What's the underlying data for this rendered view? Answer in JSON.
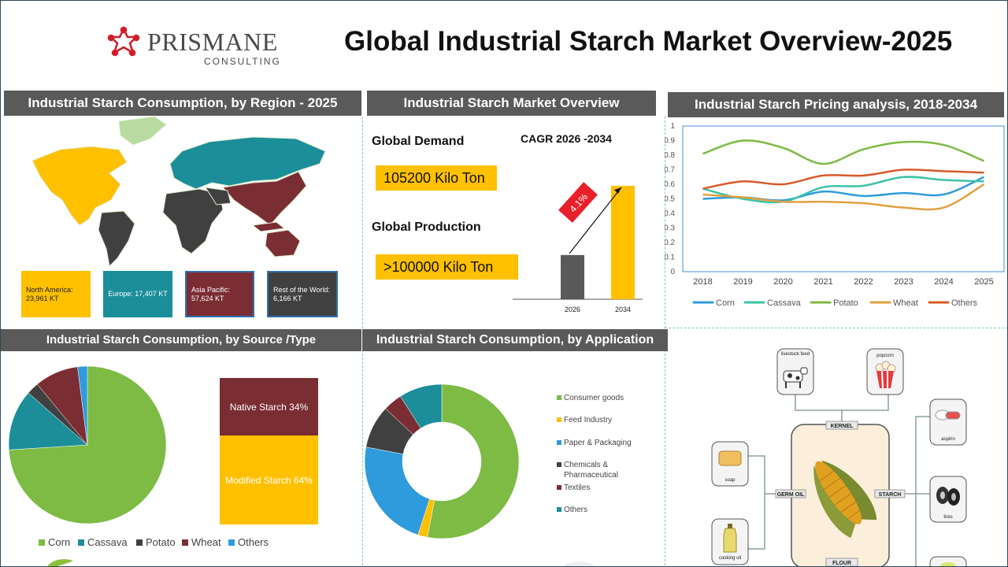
{
  "brand": {
    "name": "PRISMANE",
    "sub": "CONSULTING"
  },
  "title": "Global Industrial Starch Market Overview-2025",
  "region": {
    "header": "Industrial Starch Consumption, by Region - 2025",
    "boxes": [
      {
        "label": "North America: 23,961 KT",
        "color": "#ffc000",
        "text_color": "#222"
      },
      {
        "label": "Europe: 17,407 KT",
        "color": "#1b8e9a",
        "text_color": "#fff"
      },
      {
        "label": "Asia Pacific: 57,624 KT",
        "color": "#7b2d34",
        "text_color": "#fff"
      },
      {
        "label": "Rest of the World: 6,166 KT",
        "color": "#404040",
        "text_color": "#fff"
      }
    ]
  },
  "overview": {
    "header": "Industrial Starch Market Overview",
    "demand_label": "Global Demand",
    "demand_value": "105200 Kilo Ton",
    "production_label": "Global Production",
    "production_value": ">100000 Kilo Ton",
    "cagr_label": "CAGR 2026 -2034",
    "cagr_value": "4.1%"
  },
  "pricing": {
    "header": "Industrial Starch Pricing analysis, 2018-2034"
  },
  "source": {
    "header": "Industrial Starch Consumption, by Source /Type",
    "stack_top": "Native Starch 34%",
    "stack_bottom": "Modified Starch 64%"
  },
  "application": {
    "header": "Industrial Starch Consumption, by Application"
  },
  "corn_diagram": {
    "kernel": "KERNEL",
    "germ_oil": "GERM OIL",
    "starch": "STARCH",
    "flour": "FLOUR",
    "livestock_feed": "livestock feed",
    "popcorn": "popcorn",
    "aspirin": "aspirin",
    "tires": "tires",
    "soap": "soap",
    "cooking_oil": "cooking oil"
  },
  "colors": {
    "corn": "#2e9bdc",
    "cassava": "#3ec2a8",
    "potato": "#7dbb44",
    "wheat": "#e0a040",
    "others": "#d85a2a"
  },
  "chart_data": [
    {
      "type": "bar",
      "categories": [
        "2026",
        "2034"
      ],
      "values": [
        0.39,
        1.0
      ],
      "ylim": [
        0,
        1
      ],
      "annotation": "4.1%",
      "colors": [
        "#595959",
        "#ffc000"
      ]
    },
    {
      "type": "line",
      "x": [
        "2018",
        "2019",
        "2020",
        "2021",
        "2022",
        "2023",
        "2024",
        "2025"
      ],
      "ylim": [
        0,
        1
      ],
      "yticks": [
        "1",
        "0.9",
        "0.8",
        "0.7",
        "0.6",
        "0.5",
        "0.4",
        "0.3",
        "0.2",
        "0.1",
        "0"
      ],
      "series": [
        {
          "name": "Corn",
          "color": "#2e9bdc",
          "values": [
            0.5,
            0.51,
            0.49,
            0.55,
            0.52,
            0.54,
            0.53,
            0.65
          ]
        },
        {
          "name": "Cassava",
          "color": "#3ec2a8",
          "values": [
            0.57,
            0.5,
            0.48,
            0.58,
            0.59,
            0.65,
            0.63,
            0.62
          ]
        },
        {
          "name": "Potato",
          "color": "#7dbb44",
          "values": [
            0.81,
            0.9,
            0.85,
            0.74,
            0.84,
            0.89,
            0.87,
            0.76
          ]
        },
        {
          "name": "Wheat",
          "color": "#e0a040",
          "values": [
            0.53,
            0.51,
            0.48,
            0.48,
            0.47,
            0.44,
            0.44,
            0.6
          ]
        },
        {
          "name": "Others",
          "color": "#d85a2a",
          "values": [
            0.57,
            0.62,
            0.6,
            0.66,
            0.66,
            0.7,
            0.69,
            0.68
          ]
        }
      ]
    },
    {
      "type": "pie",
      "categories": [
        "Corn",
        "Cassava",
        "Potato",
        "Wheat",
        "Others"
      ],
      "values": [
        74,
        12.5,
        2.5,
        9,
        2
      ],
      "colors": [
        "#7dbb44",
        "#1b8e9a",
        "#404040",
        "#7b2d34",
        "#2e9bdc"
      ]
    },
    {
      "type": "pie",
      "donut": true,
      "categories": [
        "Consumer goods",
        "Feed Industry",
        "Paper & Packaging",
        "Chemicals & Pharmaceutical",
        "Textiles",
        "Others"
      ],
      "values": [
        53,
        2,
        23,
        9,
        4,
        9
      ],
      "colors": [
        "#7dbb44",
        "#ffc000",
        "#2e9bdc",
        "#404040",
        "#7b2d34",
        "#1b8e9a"
      ]
    }
  ]
}
